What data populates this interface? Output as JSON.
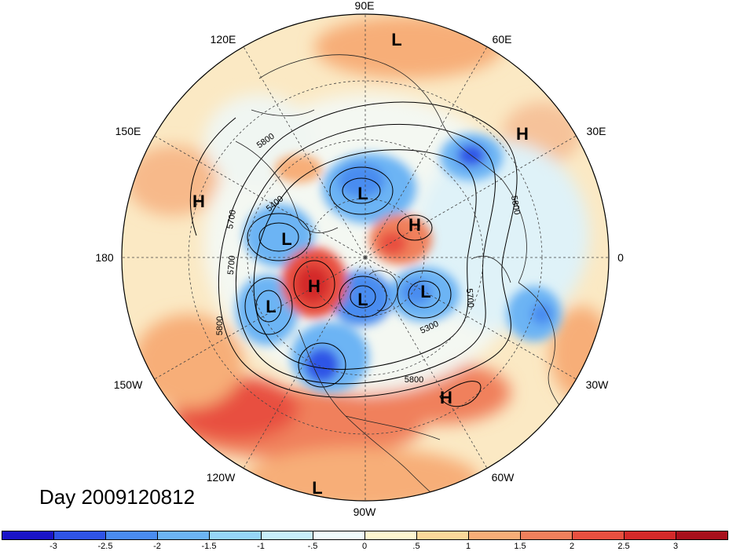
{
  "map": {
    "projection": "polar stereographic, north pole centered",
    "field": "geopotential height anomaly with height contours",
    "title": "Day 2009120812",
    "longitude_labels": [
      {
        "id": "90E",
        "text": "90E"
      },
      {
        "id": "120E",
        "text": "120E"
      },
      {
        "id": "60E",
        "text": "60E"
      },
      {
        "id": "150E",
        "text": "150E"
      },
      {
        "id": "30E",
        "text": "30E"
      },
      {
        "id": "180",
        "text": "180"
      },
      {
        "id": "0",
        "text": "0"
      },
      {
        "id": "150W",
        "text": "150W"
      },
      {
        "id": "30W",
        "text": "30W"
      },
      {
        "id": "120W",
        "text": "120W"
      },
      {
        "id": "60W",
        "text": "60W"
      },
      {
        "id": "90W",
        "text": "90W"
      }
    ],
    "pressure_centers": [
      {
        "type": "L"
      },
      {
        "type": "H"
      },
      {
        "type": "H"
      },
      {
        "type": "L"
      },
      {
        "type": "H"
      },
      {
        "type": "L"
      },
      {
        "type": "H"
      },
      {
        "type": "L"
      },
      {
        "type": "L"
      },
      {
        "type": "L"
      },
      {
        "type": "H"
      },
      {
        "type": "L"
      }
    ],
    "contour_labels": [
      "5800",
      "5400",
      "5700",
      "5700",
      "5800",
      "5800",
      "5700",
      "5300",
      "5800"
    ]
  },
  "colorbar": {
    "colors": [
      "#1a14c8",
      "#2f54e6",
      "#4a8cf0",
      "#6cb4f4",
      "#96d6f8",
      "#c8eefa",
      "#f0fafc",
      "#fdf6d0",
      "#fad89a",
      "#f7ae78",
      "#f0805c",
      "#e85040",
      "#d42a2a",
      "#a8101c"
    ],
    "labels": [
      "-3",
      "-2.5",
      "-2",
      "-1.5",
      "-1",
      "-.5",
      "0",
      ".5",
      "1",
      "1.5",
      "2",
      "2.5",
      "3"
    ]
  }
}
